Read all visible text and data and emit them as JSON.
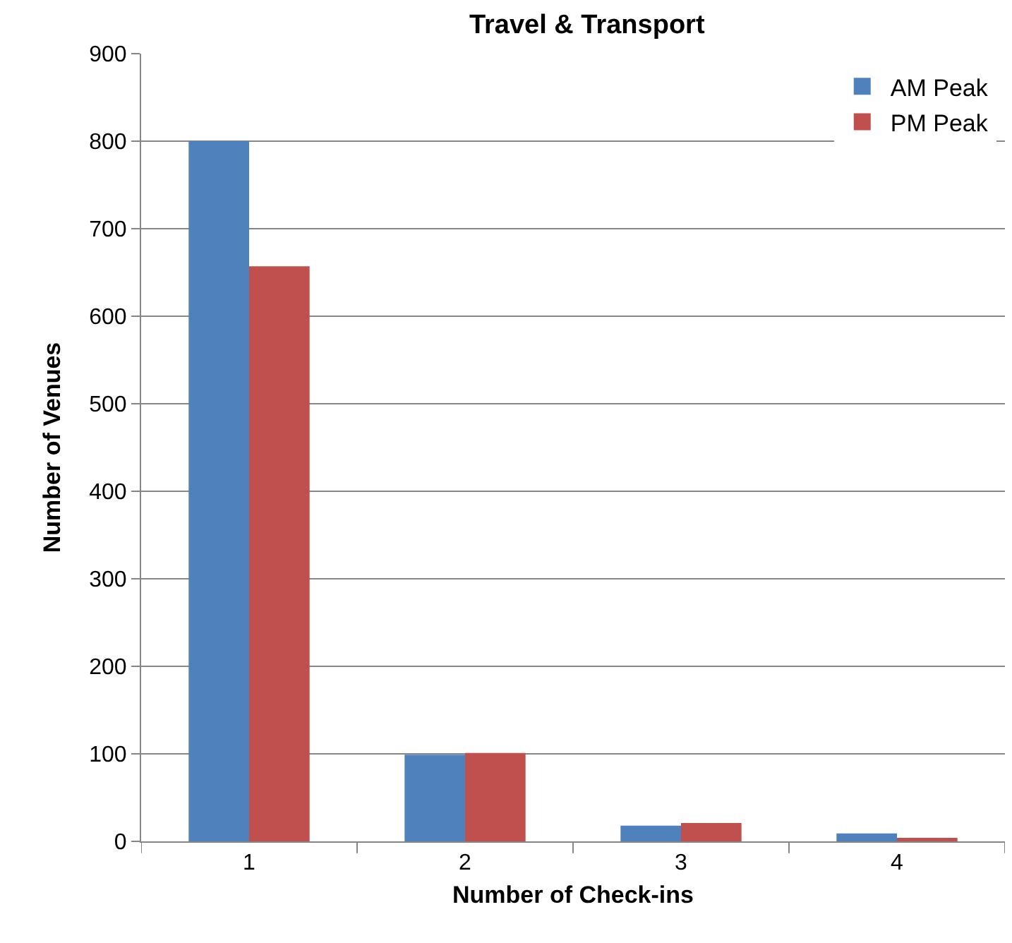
{
  "chart_data": {
    "type": "bar",
    "title": "Travel & Transport",
    "xlabel": "Number of Check-ins",
    "ylabel": "Number of Venues",
    "categories": [
      "1",
      "2",
      "3",
      "4"
    ],
    "series": [
      {
        "name": "AM Peak",
        "color": "#4f81bd",
        "values": [
          800,
          99,
          18,
          9
        ]
      },
      {
        "name": "PM Peak",
        "color": "#c0504d",
        "values": [
          657,
          101,
          21,
          4
        ]
      }
    ],
    "ylim": [
      0,
      900
    ],
    "yticks": [
      0,
      100,
      200,
      300,
      400,
      500,
      600,
      700,
      800,
      900
    ],
    "grid": "y",
    "legend": "top right"
  }
}
